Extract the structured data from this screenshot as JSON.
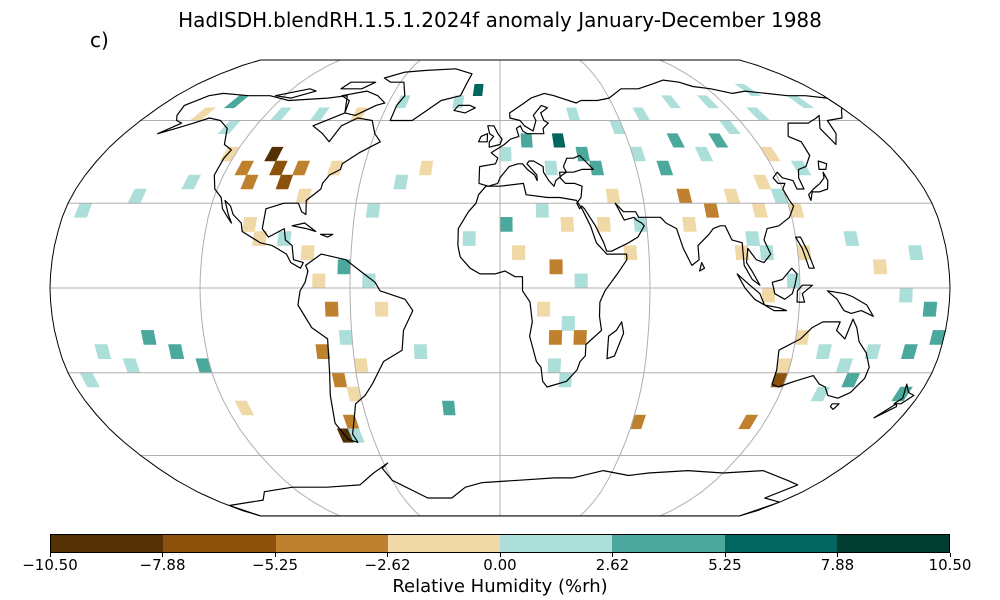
{
  "title": "HadISDH.blendRH.1.5.1.2024f anomaly January-December 1988",
  "panel_label": "c)",
  "colorbar": {
    "label": "Relative Humidity (%rh)",
    "ticks": [
      "−10.50",
      "−7.88",
      "−5.25",
      "−2.62",
      "0.00",
      "2.62",
      "5.25",
      "7.88",
      "10.50"
    ],
    "bins": [
      -10.5,
      -7.88,
      -5.25,
      -2.62,
      0.0,
      2.62,
      5.25,
      7.88,
      10.5
    ],
    "colors": [
      "#543005",
      "#8c510a",
      "#bf812d",
      "#f0d9a7",
      "#acdfd9",
      "#4aa89d",
      "#01665e",
      "#003c30"
    ]
  },
  "map": {
    "projection": "Robinson",
    "graticule": {
      "lon_step": 60,
      "lat_step": 30
    },
    "ocean_color": "#ffffff",
    "coast_color": "#000000",
    "grid_color": "#b0b0b0"
  },
  "chart_data": {
    "type": "heatmap",
    "title": "HadISDH.blendRH.1.5.1.2024f anomaly January-December 1988",
    "colorbar_label": "Relative Humidity (%rh)",
    "units": "%rh",
    "vmin": -10.5,
    "vmax": 10.5,
    "grid_resolution_deg": 5,
    "anomalies": [
      {
        "lon": -102.5,
        "lat": 47.5,
        "value": -9.0
      },
      {
        "lon": -97.5,
        "lat": 42.5,
        "value": -7.5
      },
      {
        "lon": -92.5,
        "lat": 37.5,
        "value": -6.5
      },
      {
        "lon": -107.5,
        "lat": 37.5,
        "value": -4.0
      },
      {
        "lon": -87.5,
        "lat": 42.5,
        "value": -4.5
      },
      {
        "lon": -112.5,
        "lat": 42.5,
        "value": -3.5
      },
      {
        "lon": -82.5,
        "lat": 32.5,
        "value": -1.5
      },
      {
        "lon": -72.5,
        "lat": 42.5,
        "value": -1.5
      },
      {
        "lon": -122.5,
        "lat": 47.5,
        "value": -1.5
      },
      {
        "lon": -132.5,
        "lat": 57.5,
        "value": 1.5
      },
      {
        "lon": -152.5,
        "lat": 62.5,
        "value": -1.5
      },
      {
        "lon": -142.5,
        "lat": 67.5,
        "value": 4.0
      },
      {
        "lon": -112.5,
        "lat": 62.5,
        "value": 1.5
      },
      {
        "lon": -92.5,
        "lat": 62.5,
        "value": 1.5
      },
      {
        "lon": -72.5,
        "lat": 62.5,
        "value": -1.5
      },
      {
        "lon": -52.5,
        "lat": 67.5,
        "value": 1.5
      },
      {
        "lon": -22.5,
        "lat": 67.5,
        "value": 1.5
      },
      {
        "lon": -12.5,
        "lat": 72.5,
        "value": 6.0
      },
      {
        "lon": -152.5,
        "lat": 32.5,
        "value": 1.5
      },
      {
        "lon": -172.5,
        "lat": 27.5,
        "value": 1.5
      },
      {
        "lon": -132.5,
        "lat": 37.5,
        "value": 1.5
      },
      {
        "lon": -42.5,
        "lat": 37.5,
        "value": 1.5
      },
      {
        "lon": -32.5,
        "lat": 42.5,
        "value": -1.5
      },
      {
        "lon": -52.5,
        "lat": 27.5,
        "value": 1.5
      },
      {
        "lon": -102.5,
        "lat": 22.5,
        "value": -1.5
      },
      {
        "lon": -97.5,
        "lat": 17.5,
        "value": -1.5
      },
      {
        "lon": -87.5,
        "lat": 17.5,
        "value": 1.5
      },
      {
        "lon": -77.5,
        "lat": 12.5,
        "value": -1.5
      },
      {
        "lon": -62.5,
        "lat": 7.5,
        "value": 4.0
      },
      {
        "lon": -72.5,
        "lat": 2.5,
        "value": -1.5
      },
      {
        "lon": -52.5,
        "lat": 2.5,
        "value": 1.5
      },
      {
        "lon": -67.5,
        "lat": -7.5,
        "value": -3.5
      },
      {
        "lon": -47.5,
        "lat": -7.5,
        "value": -1.5
      },
      {
        "lon": -62.5,
        "lat": -17.5,
        "value": 1.5
      },
      {
        "lon": -72.5,
        "lat": -22.5,
        "value": -3.5
      },
      {
        "lon": -57.5,
        "lat": -27.5,
        "value": -1.5
      },
      {
        "lon": -67.5,
        "lat": -32.5,
        "value": -3.5
      },
      {
        "lon": -62.5,
        "lat": -37.5,
        "value": -1.5
      },
      {
        "lon": -67.5,
        "lat": -47.5,
        "value": -3.0
      },
      {
        "lon": -72.5,
        "lat": -52.5,
        "value": -9.0
      },
      {
        "lon": -67.5,
        "lat": -52.5,
        "value": 1.5
      },
      {
        "lon": -142.5,
        "lat": -17.5,
        "value": 4.0
      },
      {
        "lon": -162.5,
        "lat": -22.5,
        "value": 1.5
      },
      {
        "lon": -132.5,
        "lat": -22.5,
        "value": 4.0
      },
      {
        "lon": -122.5,
        "lat": -27.5,
        "value": 4.0
      },
      {
        "lon": -172.5,
        "lat": -32.5,
        "value": 1.5
      },
      {
        "lon": -152.5,
        "lat": -27.5,
        "value": 1.5
      },
      {
        "lon": -32.5,
        "lat": -22.5,
        "value": 1.5
      },
      {
        "lon": -22.5,
        "lat": -42.5,
        "value": 4.0
      },
      {
        "lon": -12.5,
        "lat": 17.5,
        "value": 1.5
      },
      {
        "lon": 2.5,
        "lat": 22.5,
        "value": 4.0
      },
      {
        "lon": 17.5,
        "lat": 27.5,
        "value": 1.5
      },
      {
        "lon": 27.5,
        "lat": 22.5,
        "value": -1.5
      },
      {
        "lon": 7.5,
        "lat": 12.5,
        "value": -1.5
      },
      {
        "lon": 22.5,
        "lat": 7.5,
        "value": -3.5
      },
      {
        "lon": 32.5,
        "lat": 2.5,
        "value": 1.5
      },
      {
        "lon": 17.5,
        "lat": -7.5,
        "value": -1.5
      },
      {
        "lon": 27.5,
        "lat": -12.5,
        "value": 1.5
      },
      {
        "lon": 22.5,
        "lat": -17.5,
        "value": -3.5
      },
      {
        "lon": 32.5,
        "lat": -17.5,
        "value": -3.5
      },
      {
        "lon": 22.5,
        "lat": -27.5,
        "value": 1.5
      },
      {
        "lon": 27.5,
        "lat": -32.5,
        "value": 1.5
      },
      {
        "lon": 2.5,
        "lat": 47.5,
        "value": 1.5
      },
      {
        "lon": 12.5,
        "lat": 52.5,
        "value": 4.0
      },
      {
        "lon": 27.5,
        "lat": 52.5,
        "value": 6.0
      },
      {
        "lon": 37.5,
        "lat": 47.5,
        "value": 4.0
      },
      {
        "lon": 22.5,
        "lat": 42.5,
        "value": 1.5
      },
      {
        "lon": 42.5,
        "lat": 42.5,
        "value": 4.0
      },
      {
        "lon": 47.5,
        "lat": 32.5,
        "value": -1.5
      },
      {
        "lon": 42.5,
        "lat": 22.5,
        "value": -1.5
      },
      {
        "lon": 57.5,
        "lat": 22.5,
        "value": 1.5
      },
      {
        "lon": 52.5,
        "lat": 12.5,
        "value": -1.5
      },
      {
        "lon": 37.5,
        "lat": 62.5,
        "value": 1.5
      },
      {
        "lon": 57.5,
        "lat": 57.5,
        "value": 1.5
      },
      {
        "lon": 62.5,
        "lat": 47.5,
        "value": 1.5
      },
      {
        "lon": 72.5,
        "lat": 42.5,
        "value": 4.0
      },
      {
        "lon": 82.5,
        "lat": 52.5,
        "value": 4.0
      },
      {
        "lon": 92.5,
        "lat": 47.5,
        "value": 1.5
      },
      {
        "lon": 102.5,
        "lat": 52.5,
        "value": 4.0
      },
      {
        "lon": 112.5,
        "lat": 57.5,
        "value": 1.5
      },
      {
        "lon": 72.5,
        "lat": 62.5,
        "value": 1.5
      },
      {
        "lon": 92.5,
        "lat": 67.5,
        "value": 1.5
      },
      {
        "lon": 112.5,
        "lat": 67.5,
        "value": 1.5
      },
      {
        "lon": 132.5,
        "lat": 62.5,
        "value": 1.5
      },
      {
        "lon": 142.5,
        "lat": 72.5,
        "value": 1.5
      },
      {
        "lon": 162.5,
        "lat": 67.5,
        "value": 1.5
      },
      {
        "lon": 122.5,
        "lat": 47.5,
        "value": -1.5
      },
      {
        "lon": 132.5,
        "lat": 42.5,
        "value": 1.5
      },
      {
        "lon": 77.5,
        "lat": 32.5,
        "value": -3.5
      },
      {
        "lon": 77.5,
        "lat": 22.5,
        "value": -1.5
      },
      {
        "lon": 87.5,
        "lat": 27.5,
        "value": -3.5
      },
      {
        "lon": 97.5,
        "lat": 32.5,
        "value": -1.5
      },
      {
        "lon": 107.5,
        "lat": 27.5,
        "value": -1.5
      },
      {
        "lon": 112.5,
        "lat": 37.5,
        "value": -1.5
      },
      {
        "lon": 117.5,
        "lat": 32.5,
        "value": 1.5
      },
      {
        "lon": 122.5,
        "lat": 27.5,
        "value": -1.5
      },
      {
        "lon": 102.5,
        "lat": 17.5,
        "value": 1.5
      },
      {
        "lon": 97.5,
        "lat": 12.5,
        "value": -1.5
      },
      {
        "lon": 107.5,
        "lat": 12.5,
        "value": 1.5
      },
      {
        "lon": 122.5,
        "lat": 12.5,
        "value": -1.5
      },
      {
        "lon": 117.5,
        "lat": 2.5,
        "value": 1.5
      },
      {
        "lon": 107.5,
        "lat": -2.5,
        "value": -1.5
      },
      {
        "lon": 142.5,
        "lat": 17.5,
        "value": 1.5
      },
      {
        "lon": 152.5,
        "lat": 7.5,
        "value": -1.5
      },
      {
        "lon": 167.5,
        "lat": 12.5,
        "value": 1.5
      },
      {
        "lon": 162.5,
        "lat": -2.5,
        "value": 1.5
      },
      {
        "lon": 172.5,
        "lat": -7.5,
        "value": 4.0
      },
      {
        "lon": 122.5,
        "lat": -17.5,
        "value": -1.5
      },
      {
        "lon": 132.5,
        "lat": -22.5,
        "value": 1.5
      },
      {
        "lon": 117.5,
        "lat": -27.5,
        "value": -1.5
      },
      {
        "lon": 117.5,
        "lat": -32.5,
        "value": -7.5
      },
      {
        "lon": 142.5,
        "lat": -27.5,
        "value": 1.5
      },
      {
        "lon": 147.5,
        "lat": -32.5,
        "value": 4.0
      },
      {
        "lon": 152.5,
        "lat": -22.5,
        "value": 1.5
      },
      {
        "lon": 137.5,
        "lat": -37.5,
        "value": 1.5
      },
      {
        "lon": 167.5,
        "lat": -22.5,
        "value": 4.0
      },
      {
        "lon": 172.5,
        "lat": -37.5,
        "value": 4.0
      },
      {
        "lon": 177.5,
        "lat": -17.5,
        "value": 4.0
      },
      {
        "lon": 62.5,
        "lat": -47.5,
        "value": -3.5
      },
      {
        "lon": 112.5,
        "lat": -47.5,
        "value": -3.5
      },
      {
        "lon": -112.5,
        "lat": -42.5,
        "value": -1.5
      }
    ]
  }
}
